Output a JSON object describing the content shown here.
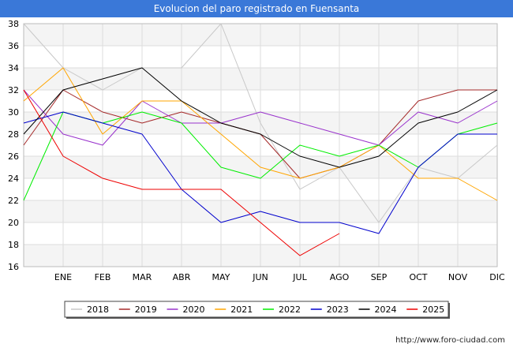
{
  "chart_data": {
    "type": "line",
    "title": "Evolucion del paro registrado en Fuensanta",
    "xlabel": "",
    "ylabel": "",
    "categories": [
      "",
      "ENE",
      "FEB",
      "MAR",
      "ABR",
      "MAY",
      "JUN",
      "JUL",
      "AGO",
      "SEP",
      "OCT",
      "NOV",
      "DIC"
    ],
    "ylim": [
      16,
      38
    ],
    "yticks": [
      16,
      18,
      20,
      22,
      24,
      26,
      28,
      30,
      32,
      34,
      36,
      38
    ],
    "grid": true,
    "legend_position": "bottom",
    "series": [
      {
        "name": "2018",
        "color": "#c8c8c8",
        "values": [
          38,
          34,
          32,
          34,
          34,
          38,
          29,
          23,
          25,
          20,
          25,
          24,
          27
        ]
      },
      {
        "name": "2019",
        "color": "#a52a2a",
        "values": [
          27,
          32,
          30,
          29,
          30,
          29,
          28,
          24,
          25,
          27,
          31,
          32,
          32
        ]
      },
      {
        "name": "2020",
        "color": "#9932cc",
        "values": [
          32,
          28,
          27,
          31,
          29,
          29,
          30,
          29,
          28,
          27,
          30,
          29,
          31
        ]
      },
      {
        "name": "2021",
        "color": "#ffa500",
        "values": [
          31,
          34,
          28,
          31,
          31,
          28,
          25,
          24,
          25,
          27,
          24,
          24,
          22
        ]
      },
      {
        "name": "2022",
        "color": "#00ee00",
        "values": [
          22,
          30,
          29,
          30,
          29,
          25,
          24,
          27,
          26,
          27,
          25,
          28,
          29
        ]
      },
      {
        "name": "2023",
        "color": "#0000cd",
        "values": [
          29,
          30,
          29,
          28,
          23,
          20,
          21,
          20,
          20,
          19,
          25,
          28,
          28
        ]
      },
      {
        "name": "2024",
        "color": "#000000",
        "values": [
          28,
          32,
          33,
          34,
          31,
          29,
          28,
          26,
          25,
          26,
          29,
          30,
          32
        ]
      },
      {
        "name": "2025",
        "color": "#ee0000",
        "values": [
          32,
          26,
          24,
          23,
          23,
          23,
          20,
          17,
          19,
          null,
          null,
          null,
          null
        ]
      }
    ]
  },
  "footer": {
    "url": "http://www.foro-ciudad.com"
  }
}
